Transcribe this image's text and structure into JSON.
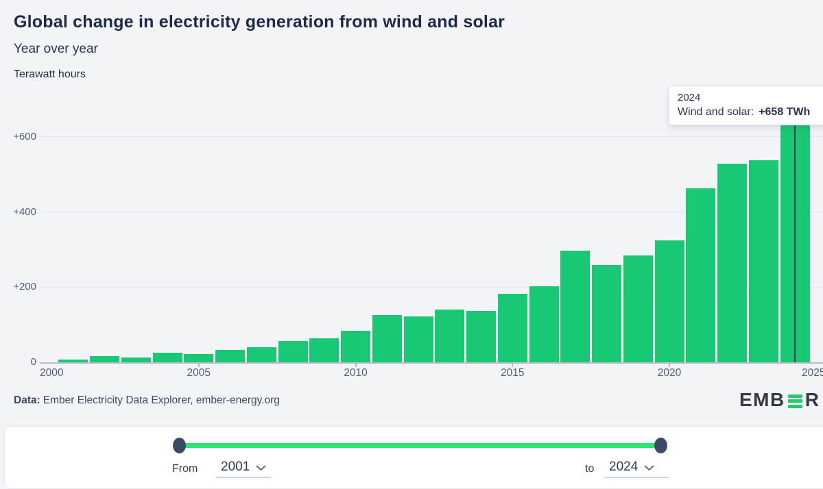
{
  "header": {
    "title": "Global change in electricity generation from wind and solar",
    "subtitle": "Year over year",
    "units": "Terawatt hours"
  },
  "chart_data": {
    "type": "bar",
    "title": "Global change in electricity generation from wind and solar",
    "subtitle": "Year over year",
    "ylabel": "Terawatt hours",
    "series_name": "Wind and solar",
    "x": [
      2001,
      2002,
      2003,
      2004,
      2005,
      2006,
      2007,
      2008,
      2009,
      2010,
      2011,
      2012,
      2013,
      2014,
      2015,
      2016,
      2017,
      2018,
      2019,
      2020,
      2021,
      2022,
      2023,
      2024
    ],
    "values": [
      8,
      16,
      12,
      25,
      21,
      33,
      41,
      56,
      64,
      84,
      125,
      122,
      140,
      137,
      183,
      203,
      297,
      259,
      284,
      324,
      463,
      528,
      537,
      658
    ],
    "ylim": [
      0,
      700
    ],
    "yticks": [
      "0",
      "+200",
      "+400",
      "+600"
    ],
    "xticks": [
      "2000",
      "2005",
      "2010",
      "2015",
      "2020",
      "2025"
    ],
    "grid": true,
    "legend": false,
    "bar_color": "#18c873",
    "highlighted_year": 2024,
    "highlighted_value_label": "+658 TWh"
  },
  "tooltip": {
    "year": "2024",
    "label": "Wind and solar:",
    "value": "+658 TWh"
  },
  "source": {
    "prefix": "Data:",
    "text": "Ember Electricity Data Explorer, ember-energy.org"
  },
  "logo": {
    "text_start": "EMB",
    "text_end": "R"
  },
  "controls": {
    "from_label": "From",
    "from_value": "2001",
    "to_label": "to",
    "to_value": "2024"
  },
  "colors": {
    "background": "#f3f4f8",
    "bar": "#18c873",
    "slider_track": "#2be56f",
    "slider_handle": "#3d4a63",
    "crosshair": "#36405c",
    "logo_green": "#27c96d",
    "title_text": "#1d2b49",
    "axis_text": "#4f5d78"
  }
}
